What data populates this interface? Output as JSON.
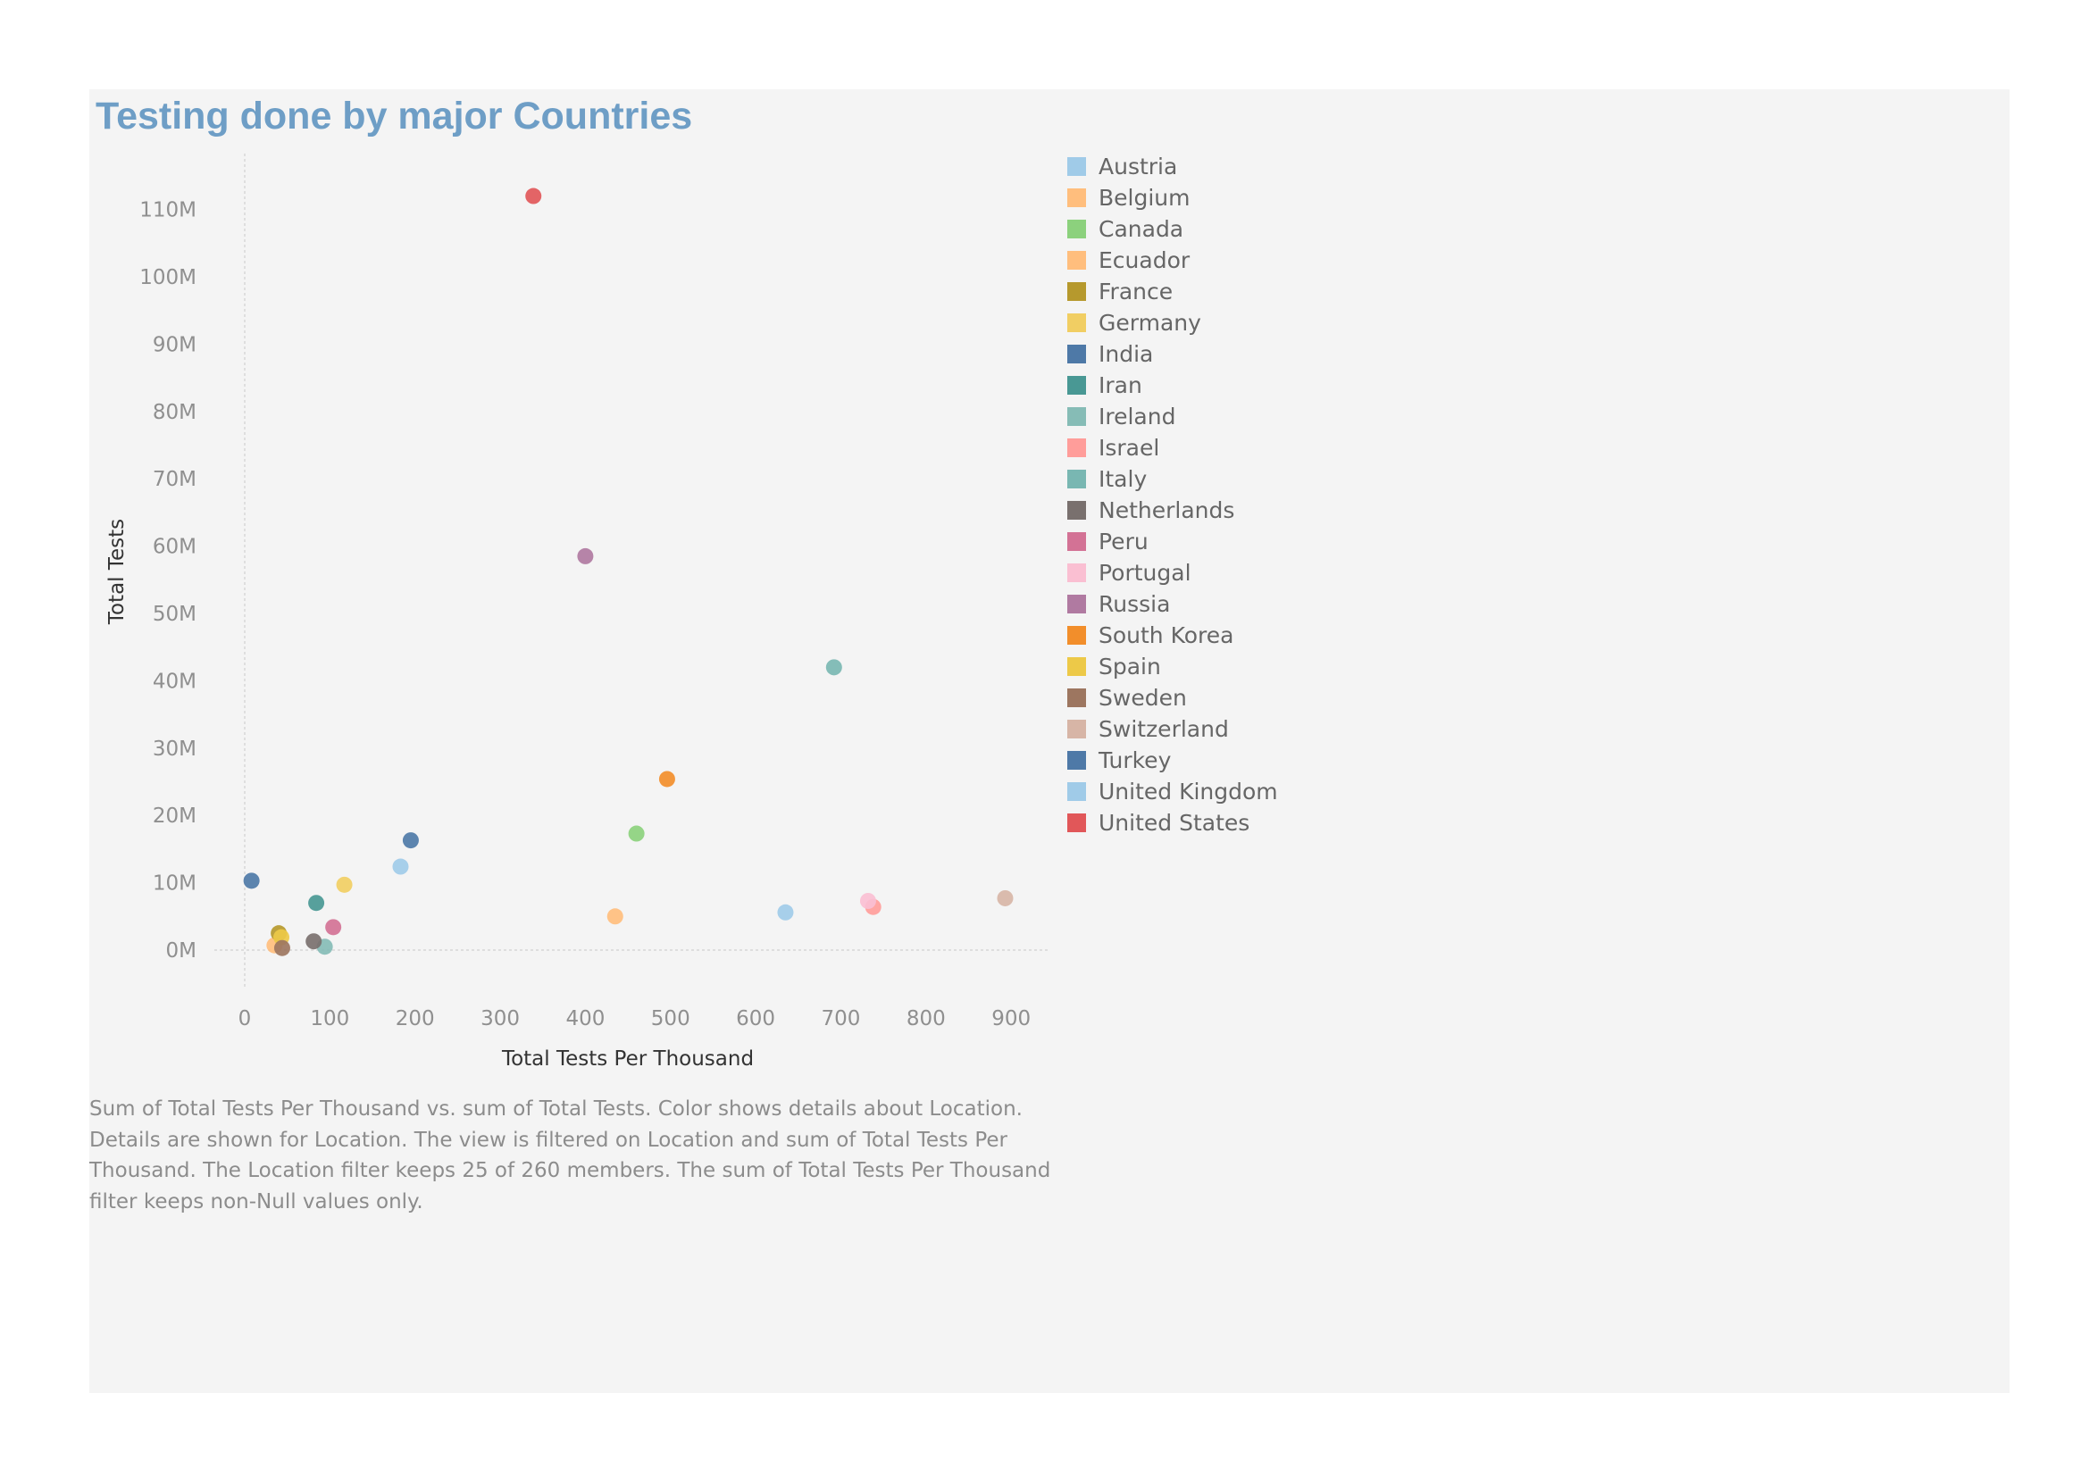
{
  "chart_data": {
    "type": "scatter",
    "title": "Testing done by major Countries",
    "xlabel": "Total Tests Per Thousand",
    "ylabel": "Total Tests",
    "xlim": [
      -20,
      940
    ],
    "ylim": [
      -7000000,
      118000000
    ],
    "x_ticks": [
      0,
      100,
      200,
      300,
      400,
      500,
      600,
      700,
      800,
      900
    ],
    "x_tick_labels": [
      "0",
      "100",
      "200",
      "300",
      "400",
      "500",
      "600",
      "700",
      "800",
      "900"
    ],
    "y_ticks": [
      0,
      10000000,
      20000000,
      30000000,
      40000000,
      50000000,
      60000000,
      70000000,
      80000000,
      90000000,
      100000000,
      110000000
    ],
    "y_tick_labels": [
      "0M",
      "10M",
      "20M",
      "30M",
      "40M",
      "50M",
      "60M",
      "70M",
      "80M",
      "90M",
      "100M",
      "110M"
    ],
    "grid": false,
    "legend_placement": "right",
    "points": [
      {
        "name": "Austria",
        "x": 635,
        "y": 5600000,
        "color": "#a0cbe8"
      },
      {
        "name": "Belgium",
        "x": 435,
        "y": 5000000,
        "color": "#ffbe7d"
      },
      {
        "name": "Canada",
        "x": 460,
        "y": 17300000,
        "color": "#8cd17d"
      },
      {
        "name": "Ecuador",
        "x": 35,
        "y": 700000,
        "color": "#ffbe7d"
      },
      {
        "name": "France",
        "x": 40,
        "y": 2500000,
        "color": "#b6992d"
      },
      {
        "name": "Germany",
        "x": 117,
        "y": 9700000,
        "color": "#f1ce63"
      },
      {
        "name": "India",
        "x": 8,
        "y": 10300000,
        "color": "#4e79a7"
      },
      {
        "name": "Iran",
        "x": 84,
        "y": 7000000,
        "color": "#499894"
      },
      {
        "name": "Ireland",
        "x": 94,
        "y": 500000,
        "color": "#86bcb6"
      },
      {
        "name": "Israel",
        "x": 738,
        "y": 6400000,
        "color": "#ff9d9a"
      },
      {
        "name": "Italy",
        "x": 692,
        "y": 42000000,
        "color": "#79b7b2"
      },
      {
        "name": "Netherlands",
        "x": 81,
        "y": 1300000,
        "color": "#79706e"
      },
      {
        "name": "Peru",
        "x": 104,
        "y": 3400000,
        "color": "#d37295"
      },
      {
        "name": "Portugal",
        "x": 732,
        "y": 7300000,
        "color": "#fabfd2"
      },
      {
        "name": "Russia",
        "x": 400,
        "y": 58500000,
        "color": "#b07aa1"
      },
      {
        "name": "South Korea",
        "x": 496,
        "y": 25400000,
        "color": "#f28e2b"
      },
      {
        "name": "Spain",
        "x": 43,
        "y": 1900000,
        "color": "#edc948"
      },
      {
        "name": "Sweden",
        "x": 44,
        "y": 300000,
        "color": "#9d7660"
      },
      {
        "name": "Switzerland",
        "x": 893,
        "y": 7700000,
        "color": "#d7b5a6"
      },
      {
        "name": "Turkey",
        "x": 195,
        "y": 16300000,
        "color": "#4e79a7"
      },
      {
        "name": "United Kingdom",
        "x": 183,
        "y": 12400000,
        "color": "#a0cbe8"
      },
      {
        "name": "United States",
        "x": 339,
        "y": 112000000,
        "color": "#e15759"
      }
    ]
  },
  "legend": [
    {
      "label": "Austria",
      "color": "#a0cbe8"
    },
    {
      "label": "Belgium",
      "color": "#ffbe7d"
    },
    {
      "label": "Canada",
      "color": "#8cd17d"
    },
    {
      "label": "Ecuador",
      "color": "#ffbe7d"
    },
    {
      "label": "France",
      "color": "#b6992d"
    },
    {
      "label": "Germany",
      "color": "#f1ce63"
    },
    {
      "label": "India",
      "color": "#4e79a7"
    },
    {
      "label": "Iran",
      "color": "#499894"
    },
    {
      "label": "Ireland",
      "color": "#86bcb6"
    },
    {
      "label": "Israel",
      "color": "#ff9d9a"
    },
    {
      "label": "Italy",
      "color": "#79b7b2"
    },
    {
      "label": "Netherlands",
      "color": "#79706e"
    },
    {
      "label": "Peru",
      "color": "#d37295"
    },
    {
      "label": "Portugal",
      "color": "#fabfd2"
    },
    {
      "label": "Russia",
      "color": "#b07aa1"
    },
    {
      "label": "South Korea",
      "color": "#f28e2b"
    },
    {
      "label": "Spain",
      "color": "#edc948"
    },
    {
      "label": "Sweden",
      "color": "#9d7660"
    },
    {
      "label": "Switzerland",
      "color": "#d7b5a6"
    },
    {
      "label": "Turkey",
      "color": "#4e79a7"
    },
    {
      "label": "United Kingdom",
      "color": "#a0cbe8"
    },
    {
      "label": "United States",
      "color": "#e15759"
    }
  ],
  "caption": "Sum of Total Tests Per Thousand vs. sum of Total Tests.  Color shows details about Location.  Details are shown for Location. The view is filtered on Location and sum of Total Tests Per Thousand. The Location filter keeps 25 of 260 members. The sum of Total Tests Per Thousand filter keeps non-Null values only.",
  "colors": {
    "title": "#6e9ec6",
    "panel_background": "#f4f4f4"
  }
}
